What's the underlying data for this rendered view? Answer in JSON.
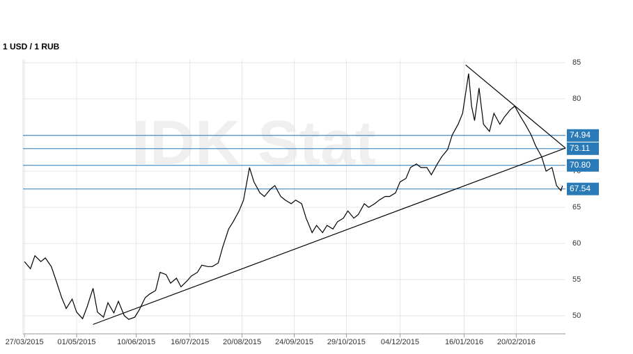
{
  "chart_data": {
    "type": "line",
    "title": "1 USD / 1 RUB",
    "watermark": "IDK Stat",
    "x": [
      "27/03/2015",
      "31/03/2015",
      "03/04/2015",
      "07/04/2015",
      "10/04/2015",
      "14/04/2015",
      "17/04/2015",
      "21/04/2015",
      "24/04/2015",
      "28/04/2015",
      "01/05/2015",
      "05/05/2015",
      "08/05/2015",
      "12/05/2015",
      "15/05/2015",
      "19/05/2015",
      "22/05/2015",
      "26/05/2015",
      "29/05/2015",
      "02/06/2015",
      "05/06/2015",
      "09/06/2015",
      "12/06/2015",
      "16/06/2015",
      "19/06/2015",
      "23/06/2015",
      "26/06/2015",
      "30/06/2015",
      "03/07/2015",
      "07/07/2015",
      "10/07/2015",
      "14/07/2015",
      "17/07/2015",
      "21/07/2015",
      "24/07/2015",
      "28/07/2015",
      "31/07/2015",
      "04/08/2015",
      "07/08/2015",
      "11/08/2015",
      "14/08/2015",
      "18/08/2015",
      "21/08/2015",
      "25/08/2015",
      "28/08/2015",
      "01/09/2015",
      "04/09/2015",
      "08/09/2015",
      "11/09/2015",
      "15/09/2015",
      "18/09/2015",
      "22/09/2015",
      "25/09/2015",
      "29/09/2015",
      "02/10/2015",
      "06/10/2015",
      "09/10/2015",
      "13/10/2015",
      "16/10/2015",
      "20/10/2015",
      "23/10/2015",
      "27/10/2015",
      "30/10/2015",
      "03/11/2015",
      "06/11/2015",
      "10/11/2015",
      "13/11/2015",
      "17/11/2015",
      "20/11/2015",
      "24/11/2015",
      "27/11/2015",
      "01/12/2015",
      "04/12/2015",
      "08/12/2015",
      "11/12/2015",
      "15/12/2015",
      "18/12/2015",
      "22/12/2015",
      "25/12/2015",
      "29/12/2015",
      "01/01/2016",
      "05/01/2016",
      "08/01/2016",
      "12/01/2016",
      "15/01/2016",
      "19/01/2016",
      "21/01/2016",
      "23/01/2016",
      "26/01/2016",
      "29/01/2016",
      "02/02/2016",
      "05/02/2016",
      "09/02/2016",
      "12/02/2016",
      "16/02/2016",
      "19/02/2016",
      "23/02/2016",
      "26/02/2016",
      "01/03/2016",
      "04/03/2016",
      "08/03/2016",
      "11/03/2016",
      "15/03/2016",
      "18/03/2016",
      "21/03/2016",
      "22/03/2016"
    ],
    "series": [
      {
        "color": "#000000",
        "values": [
          57.5,
          56.5,
          58.3,
          57.5,
          58.0,
          56.8,
          55.0,
          52.5,
          51.0,
          52.3,
          50.5,
          49.6,
          51.2,
          53.8,
          50.5,
          49.8,
          51.8,
          50.4,
          52.0,
          50.0,
          49.5,
          49.8,
          50.8,
          52.5,
          53.0,
          53.5,
          56.0,
          55.7,
          54.5,
          55.2,
          54.0,
          54.8,
          55.5,
          56.0,
          57.0,
          56.8,
          56.8,
          57.3,
          59.5,
          62.0,
          63.0,
          64.5,
          66.0,
          70.5,
          68.5,
          67.0,
          66.5,
          67.5,
          68.0,
          66.5,
          66.0,
          65.5,
          66.0,
          65.5,
          63.5,
          61.5,
          62.5,
          61.5,
          62.5,
          62.0,
          63.0,
          63.5,
          64.5,
          63.5,
          64.0,
          65.5,
          65.0,
          65.5,
          66.0,
          66.5,
          66.5,
          67.0,
          68.5,
          69.0,
          70.5,
          71.0,
          70.5,
          70.5,
          69.5,
          71.0,
          72.0,
          73.0,
          75.0,
          76.5,
          78.0,
          83.5,
          79.0,
          77.0,
          81.5,
          76.5,
          75.5,
          78.0,
          76.5,
          77.5,
          78.5,
          79.0,
          77.5,
          76.5,
          75.0,
          73.5,
          72.0,
          70.0,
          70.5,
          68.0,
          67.3,
          68.0
        ]
      }
    ],
    "trendlines": [
      {
        "x": [
          "12/05/2015",
          "24/03/2016"
        ],
        "values": [
          48.8,
          73.2
        ],
        "color": "#000000"
      },
      {
        "x": [
          "17/01/2016",
          "24/03/2016"
        ],
        "values": [
          84.7,
          73.2
        ],
        "color": "#000000"
      }
    ],
    "levels": {
      "values": [
        74.94,
        73.11,
        70.8,
        67.54
      ],
      "value_labels": [
        "74.94",
        "73.11",
        "70.80",
        "67.54"
      ],
      "color": "#2a7ab8"
    },
    "xlim": [
      "26/03/2015",
      "24/03/2016"
    ],
    "xticks": [
      "27/03/2015",
      "01/05/2015",
      "10/06/2015",
      "16/07/2015",
      "20/08/2015",
      "24/09/2015",
      "29/10/2015",
      "04/12/2015",
      "16/01/2016",
      "20/02/2016"
    ],
    "ylim": [
      47.5,
      85.5
    ],
    "yticks": [
      50,
      55,
      60,
      65,
      70,
      75,
      80,
      85
    ],
    "grid": true
  }
}
